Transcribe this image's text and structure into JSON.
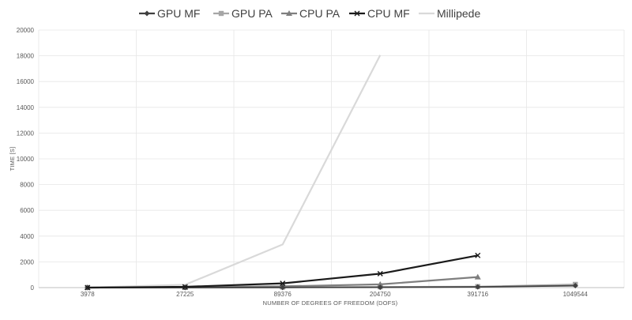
{
  "chart_data": {
    "type": "line",
    "title": "",
    "xlabel": "NUMBER OF DEGREES OF FREEDOM (DOFS)",
    "ylabel": "TIME [S]",
    "categories": [
      "3978",
      "27225",
      "89376",
      "204750",
      "391716",
      "1049544"
    ],
    "ylim": [
      0,
      20000
    ],
    "yticks": [
      "0",
      "2000",
      "4000",
      "6000",
      "8000",
      "10000",
      "12000",
      "14000",
      "16000",
      "18000",
      "20000"
    ],
    "grid": true,
    "legend_position": "top",
    "series": [
      {
        "name": "GPU MF",
        "color": "#404040",
        "marker": "diamond",
        "values": [
          0,
          3,
          10,
          25,
          55,
          150
        ]
      },
      {
        "name": "GPU PA",
        "color": "#a6a6a6",
        "marker": "square",
        "values": [
          5,
          15,
          40,
          60,
          80,
          250
        ]
      },
      {
        "name": "CPU PA",
        "color": "#7f7f7f",
        "marker": "triangle",
        "values": [
          0,
          25,
          100,
          250,
          820,
          null
        ]
      },
      {
        "name": "CPU MF",
        "color": "#1a1a1a",
        "marker": "x",
        "values": [
          0,
          60,
          330,
          1080,
          2500,
          null
        ]
      },
      {
        "name": "Millipede",
        "color": "#d9d9d9",
        "marker": "none",
        "values": [
          0,
          220,
          3350,
          18050,
          null,
          null
        ]
      }
    ]
  }
}
